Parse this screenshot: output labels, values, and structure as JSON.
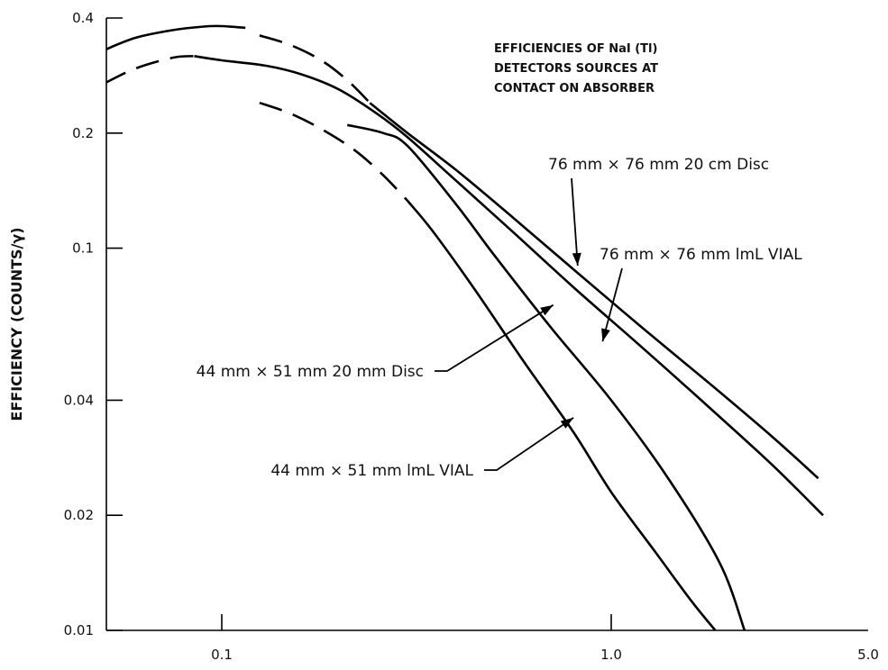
{
  "chart_data": {
    "type": "line",
    "title": "EFFICIENCIES OF NaI (Tl) DETECTORS SOURCES AT CONTACT ON ABSORBER",
    "title_lines": [
      "EFFICIENCIES OF NaI (Tl)",
      "DETECTORS SOURCES AT",
      "CONTACT ON ABSORBER"
    ],
    "xlabel": "",
    "ylabel": "EFFICIENCY (COUNTS/γ)",
    "x_scale": "log",
    "y_scale": "log",
    "xlim": [
      0.03,
      5.0
    ],
    "ylim": [
      0.01,
      0.4
    ],
    "x_ticks": [
      {
        "value": 0.1,
        "label": "0.1"
      },
      {
        "value": 1.0,
        "label": "1.0"
      },
      {
        "value": 5.0,
        "label": "5.0"
      }
    ],
    "y_ticks": [
      {
        "value": 0.4,
        "label": "0.4"
      },
      {
        "value": 0.2,
        "label": "0.2"
      },
      {
        "value": 0.1,
        "label": "0.1"
      },
      {
        "value": 0.04,
        "label": "0.04"
      },
      {
        "value": 0.02,
        "label": "0.02"
      },
      {
        "value": 0.01,
        "label": "0.01"
      }
    ],
    "grid": false,
    "legend": "none",
    "series": [
      {
        "name": "76 mm × 76 mm 20 cm Disc",
        "segments": [
          {
            "style": "solid",
            "x": [
              0.05,
              0.06,
              0.075,
              0.09,
              0.1,
              0.115
            ],
            "y": [
              0.33,
              0.355,
              0.372,
              0.38,
              0.381,
              0.377
            ]
          },
          {
            "style": "dashed",
            "x": [
              0.125,
              0.15,
              0.18,
              0.21,
              0.24
            ],
            "y": [
              0.36,
              0.34,
              0.31,
              0.275,
              0.24
            ]
          },
          {
            "style": "solid",
            "x": [
              0.24,
              0.3,
              0.4,
              0.55,
              0.8,
              1.2,
              1.8,
              2.6,
              3.4
            ],
            "y": [
              0.24,
              0.2,
              0.16,
              0.122,
              0.088,
              0.062,
              0.044,
              0.032,
              0.025
            ]
          }
        ]
      },
      {
        "name": "76 mm × 76 mm lmL VIAL",
        "segments": [
          {
            "style": "dashed",
            "x": [
              0.05,
              0.06,
              0.075,
              0.085
            ],
            "y": [
              0.27,
              0.295,
              0.315,
              0.318
            ]
          },
          {
            "style": "solid",
            "x": [
              0.085,
              0.1,
              0.13,
              0.16,
              0.2,
              0.25,
              0.3,
              0.4,
              0.55,
              0.8,
              1.2,
              1.8,
              2.6,
              3.5
            ],
            "y": [
              0.318,
              0.31,
              0.3,
              0.285,
              0.26,
              0.225,
              0.195,
              0.15,
              0.112,
              0.079,
              0.055,
              0.038,
              0.027,
              0.02
            ]
          }
        ]
      },
      {
        "name": "44 mm × 51 mm 20 mm Disc",
        "segments": [
          {
            "style": "solid",
            "x": [
              0.21,
              0.26,
              0.3,
              0.4,
              0.5,
              0.7,
              1.0,
              1.4,
              1.9,
              2.2
            ],
            "y": [
              0.21,
              0.2,
              0.185,
              0.13,
              0.096,
              0.062,
              0.04,
              0.025,
              0.015,
              0.01
            ]
          }
        ]
      },
      {
        "name": "44 mm × 51 mm lmL VIAL",
        "segments": [
          {
            "style": "dashed",
            "x": [
              0.125,
              0.15,
              0.18,
              0.22,
              0.26,
              0.3
            ],
            "y": [
              0.24,
              0.225,
              0.205,
              0.18,
              0.155,
              0.133
            ]
          },
          {
            "style": "solid",
            "x": [
              0.3,
              0.35,
              0.45,
              0.6,
              0.8,
              1.0,
              1.3,
              1.6,
              1.85
            ],
            "y": [
              0.133,
              0.11,
              0.077,
              0.05,
              0.033,
              0.023,
              0.016,
              0.012,
              0.01
            ]
          }
        ]
      }
    ],
    "annotations": [
      {
        "text": "76 mm × 76 mm 20 cm Disc",
        "x": 1.3,
        "y": 0.17,
        "point_x": 0.82,
        "point_y": 0.09
      },
      {
        "text": "76 mm × 76 mm  lmL  VIAL",
        "x": 2.0,
        "y": 0.092,
        "point_x": 0.95,
        "point_y": 0.057
      },
      {
        "text": "44 mm × 51 mm 20 mm Disc",
        "x": 0.11,
        "y": 0.047,
        "point_x": 0.71,
        "point_y": 0.071
      },
      {
        "text": "44 mm × 51 mm  lmL  VIAL",
        "x": 0.2,
        "y": 0.026,
        "point_x": 0.8,
        "point_y": 0.036
      }
    ]
  }
}
